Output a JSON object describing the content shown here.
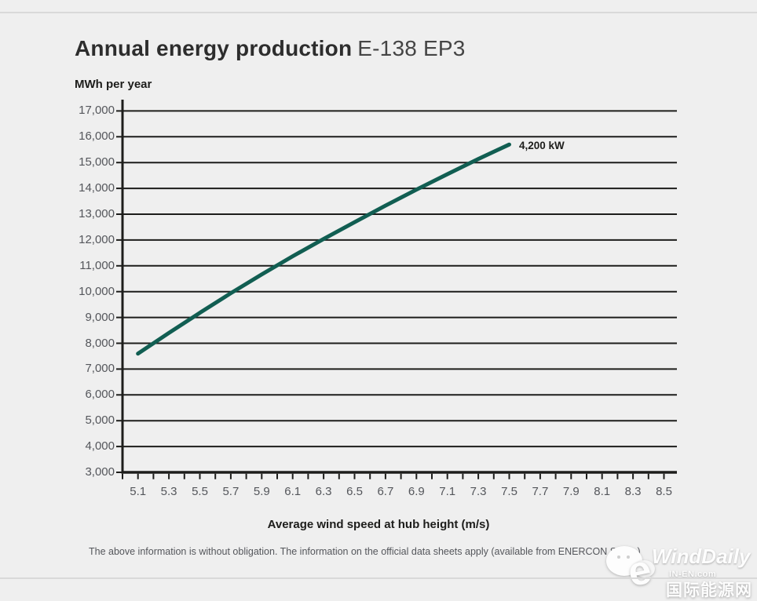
{
  "page": {
    "title_bold": "Annual energy production",
    "title_model": "E-138 EP3"
  },
  "chart_data": {
    "type": "line",
    "title": "Annual energy production E-138 EP3",
    "ylabel": "MWh per year",
    "xlabel": "Average wind speed at hub height (m/s)",
    "grid": true,
    "ylim": [
      3000,
      17000
    ],
    "xlim": [
      5.0,
      8.6
    ],
    "y_ticks": [
      "17,000",
      "16,000",
      "15,000",
      "14,000",
      "13,000",
      "12,000",
      "11,000",
      "10,000",
      "9,000",
      "8,000",
      "7,000",
      "6,000",
      "5,000",
      "4,000",
      "3,000"
    ],
    "x_ticks": [
      "5.1",
      "5.3",
      "5.5",
      "5.7",
      "5.9",
      "6.1",
      "6.3",
      "6.5",
      "6.7",
      "6.9",
      "7.1",
      "7.3",
      "7.5",
      "7.7",
      "7.9",
      "8.1",
      "8.3",
      "8.5"
    ],
    "minor_x_tick_step": 0.1,
    "line_color": "#115e52",
    "grid_color": "#1d1d1b",
    "annotation": "4,200 kW",
    "series": [
      {
        "name": "4,200 kW",
        "x": [
          5.1,
          5.3,
          5.5,
          5.7,
          5.9,
          6.1,
          6.3,
          6.5,
          6.7,
          6.9,
          7.1,
          7.3,
          7.5
        ],
        "values": [
          7600,
          8400,
          9180,
          9940,
          10670,
          11370,
          12040,
          12690,
          13330,
          13950,
          14550,
          15140,
          15700
        ]
      }
    ]
  },
  "footer": {
    "disclaimer": "The above information is without obligation. The information on the official data sheets apply (available from ENERCON Sales.)"
  },
  "watermark": {
    "title": "WindDaily",
    "elogo_letter": "e",
    "domain": "IN-EN.com",
    "site_name": "国际能源网"
  }
}
